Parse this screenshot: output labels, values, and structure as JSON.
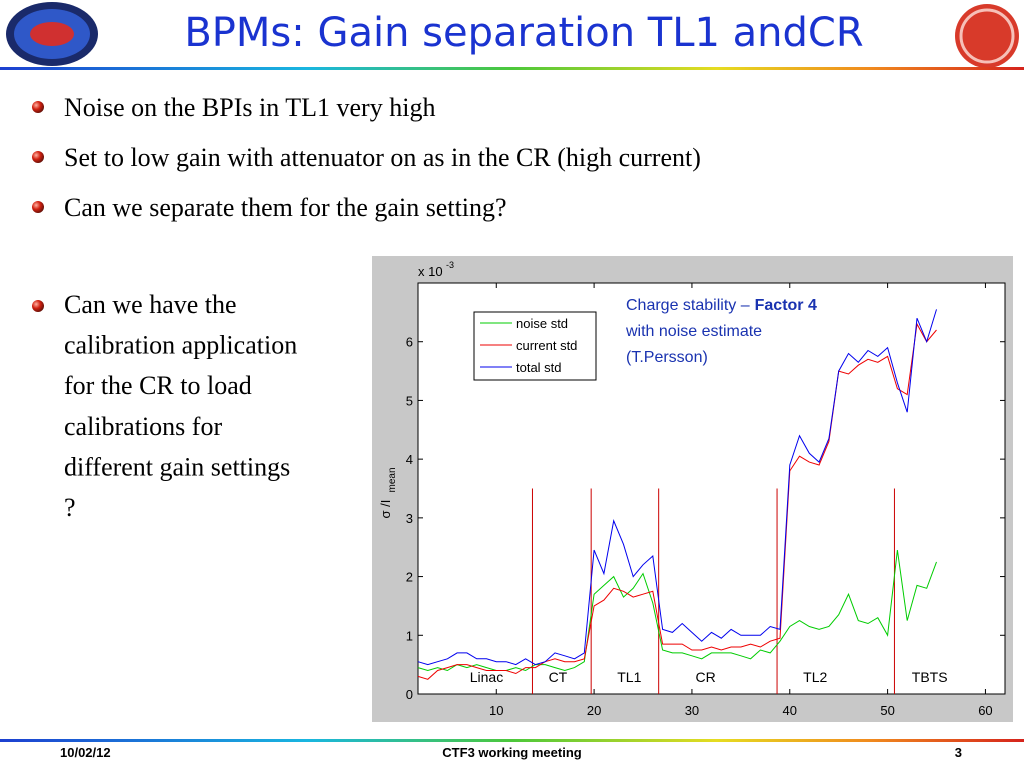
{
  "slide": {
    "title": "BPMs: Gain separation TL1 andCR",
    "bullets": [
      "Noise on the BPIs in TL1 very high",
      "Set to low gain with attenuator on as in the CR (high current)",
      "Can we separate them for the gain setting?"
    ],
    "side_bullet": [
      "Can we have the",
      "calibration application",
      "for the CR to load",
      "calibrations for",
      "different gain settings",
      "?"
    ],
    "footer": {
      "date": "10/02/12",
      "center": "CTF3 working meeting",
      "page": "3"
    }
  },
  "chart_data": {
    "type": "line",
    "multiplier": "x 10",
    "multiplier_exp": "-3",
    "ylabel": "σ /I",
    "ylabel_sub": "mean",
    "x": [
      2,
      3,
      4,
      5,
      6,
      7,
      8,
      9,
      10,
      11,
      12,
      13,
      14,
      15,
      16,
      17,
      18,
      19,
      20,
      21,
      22,
      23,
      24,
      25,
      26,
      27,
      28,
      29,
      30,
      31,
      32,
      33,
      34,
      35,
      36,
      37,
      38,
      39,
      40,
      41,
      42,
      43,
      44,
      45,
      46,
      47,
      48,
      49,
      50,
      51,
      52,
      53,
      54,
      55
    ],
    "series": [
      {
        "name": "noise std",
        "color": "#00cc00",
        "values": [
          0.45,
          0.4,
          0.45,
          0.4,
          0.5,
          0.45,
          0.5,
          0.45,
          0.4,
          0.4,
          0.45,
          0.4,
          0.5,
          0.5,
          0.45,
          0.4,
          0.45,
          0.55,
          1.7,
          1.85,
          2.0,
          1.65,
          1.8,
          2.05,
          1.55,
          0.75,
          0.7,
          0.7,
          0.65,
          0.6,
          0.7,
          0.7,
          0.7,
          0.65,
          0.6,
          0.75,
          0.7,
          0.9,
          1.15,
          1.25,
          1.15,
          1.1,
          1.15,
          1.35,
          1.7,
          1.25,
          1.2,
          1.3,
          1.0,
          2.45,
          1.25,
          1.85,
          1.8,
          2.25
        ]
      },
      {
        "name": "current std",
        "color": "#ee0000",
        "values": [
          0.3,
          0.25,
          0.4,
          0.45,
          0.5,
          0.5,
          0.45,
          0.4,
          0.4,
          0.4,
          0.35,
          0.45,
          0.45,
          0.55,
          0.6,
          0.55,
          0.55,
          0.6,
          1.5,
          1.6,
          1.8,
          1.75,
          1.65,
          1.7,
          1.75,
          0.85,
          0.85,
          0.85,
          0.75,
          0.75,
          0.8,
          0.75,
          0.8,
          0.8,
          0.85,
          0.8,
          0.9,
          0.95,
          3.8,
          4.05,
          3.95,
          3.9,
          4.3,
          5.5,
          5.45,
          5.6,
          5.7,
          5.65,
          5.75,
          5.2,
          5.1,
          6.3,
          6.0,
          6.2
        ]
      },
      {
        "name": "total std",
        "color": "#0000ee",
        "values": [
          0.55,
          0.5,
          0.55,
          0.6,
          0.7,
          0.7,
          0.6,
          0.6,
          0.55,
          0.55,
          0.5,
          0.6,
          0.5,
          0.55,
          0.7,
          0.65,
          0.6,
          0.7,
          2.45,
          2.05,
          2.95,
          2.55,
          2.0,
          2.2,
          2.35,
          1.1,
          1.05,
          1.2,
          1.05,
          0.9,
          1.05,
          0.95,
          1.1,
          1.0,
          1.0,
          1.0,
          1.15,
          1.1,
          3.9,
          4.4,
          4.1,
          3.95,
          4.35,
          5.5,
          5.8,
          5.65,
          5.85,
          5.75,
          5.9,
          5.3,
          4.8,
          6.4,
          6.0,
          6.55
        ]
      }
    ],
    "separators": [
      13.7,
      19.7,
      26.6,
      38.7,
      50.7
    ],
    "separator_top": 3.5,
    "separator_color": "#cc0000",
    "sections": [
      {
        "label": "Linac",
        "x": 9
      },
      {
        "label": "CT",
        "x": 16.3
      },
      {
        "label": "TL1",
        "x": 23.6
      },
      {
        "label": "CR",
        "x": 31.4
      },
      {
        "label": "TL2",
        "x": 42.6
      },
      {
        "label": "TBTS",
        "x": 54.3
      }
    ],
    "annotation": {
      "line1": "Charge stability –",
      "bold": "Factor 4",
      "line2": "with noise estimate",
      "line3": "(T.Persson)"
    },
    "xlim": [
      2,
      62
    ],
    "ylim": [
      0,
      7
    ],
    "xticks": [
      10,
      20,
      30,
      40,
      50,
      60
    ],
    "yticks": [
      0,
      1,
      2,
      3,
      4,
      5,
      6
    ],
    "legend": "upper left"
  }
}
